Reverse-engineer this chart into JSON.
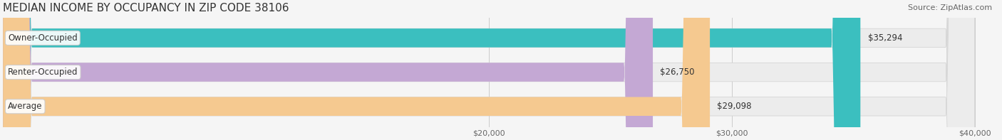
{
  "title": "MEDIAN INCOME BY OCCUPANCY IN ZIP CODE 38106",
  "source": "Source: ZipAtlas.com",
  "categories": [
    "Owner-Occupied",
    "Renter-Occupied",
    "Average"
  ],
  "values": [
    35294,
    26750,
    29098
  ],
  "bar_colors": [
    "#3bbfbf",
    "#c4a8d4",
    "#f5c990"
  ],
  "bar_bg_color": "#e8e8e8",
  "value_labels": [
    "$35,294",
    "$26,750",
    "$29,098"
  ],
  "x_ticks": [
    20000,
    30000,
    40000
  ],
  "x_tick_labels": [
    "$20,000",
    "$30,000",
    "$40,000"
  ],
  "xlim": [
    0,
    40000
  ],
  "title_fontsize": 11,
  "label_fontsize": 8.5,
  "tick_fontsize": 8,
  "source_fontsize": 8,
  "background_color": "#f5f5f5",
  "bar_height": 0.55,
  "bar_bg_alpha": 1.0,
  "label_box_color": "#ffffff",
  "label_box_edge": "#cccccc"
}
